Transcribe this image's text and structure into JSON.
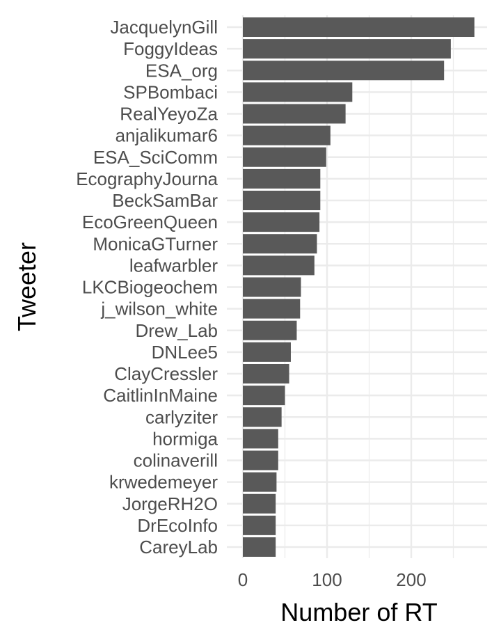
{
  "chart_data": {
    "type": "bar",
    "orientation": "horizontal",
    "xlabel": "Number of RT",
    "ylabel": "Tweeter",
    "xlim": [
      0,
      282
    ],
    "xticks": [
      0,
      100,
      200
    ],
    "grid": true,
    "bar_color": "#595959",
    "grid_color": "#ebebeb",
    "categories": [
      "JacquelynGill",
      "FoggyIdeas",
      "ESA_org",
      "SPBombaci",
      "RealYeyoZa",
      "anjalikumar6",
      "ESA_SciComm",
      "EcographyJourna",
      "BeckSamBar",
      "EcoGreenQueen",
      "MonicaGTurner",
      "leafwarbler",
      "LKCBiogeochem",
      "j_wilson_white",
      "Drew_Lab",
      "DNLee5",
      "ClayCressler",
      "CaitlinInMaine",
      "carlyziter",
      "hormiga",
      "colinaverill",
      "krwedemeyer",
      "JorgeRH2O",
      "DrEcoInfo",
      "CareyLab"
    ],
    "values": [
      275,
      247,
      239,
      130,
      122,
      104,
      99,
      92,
      92,
      91,
      88,
      85,
      69,
      68,
      64,
      57,
      55,
      50,
      46,
      42,
      42,
      40,
      39,
      39,
      39
    ]
  }
}
